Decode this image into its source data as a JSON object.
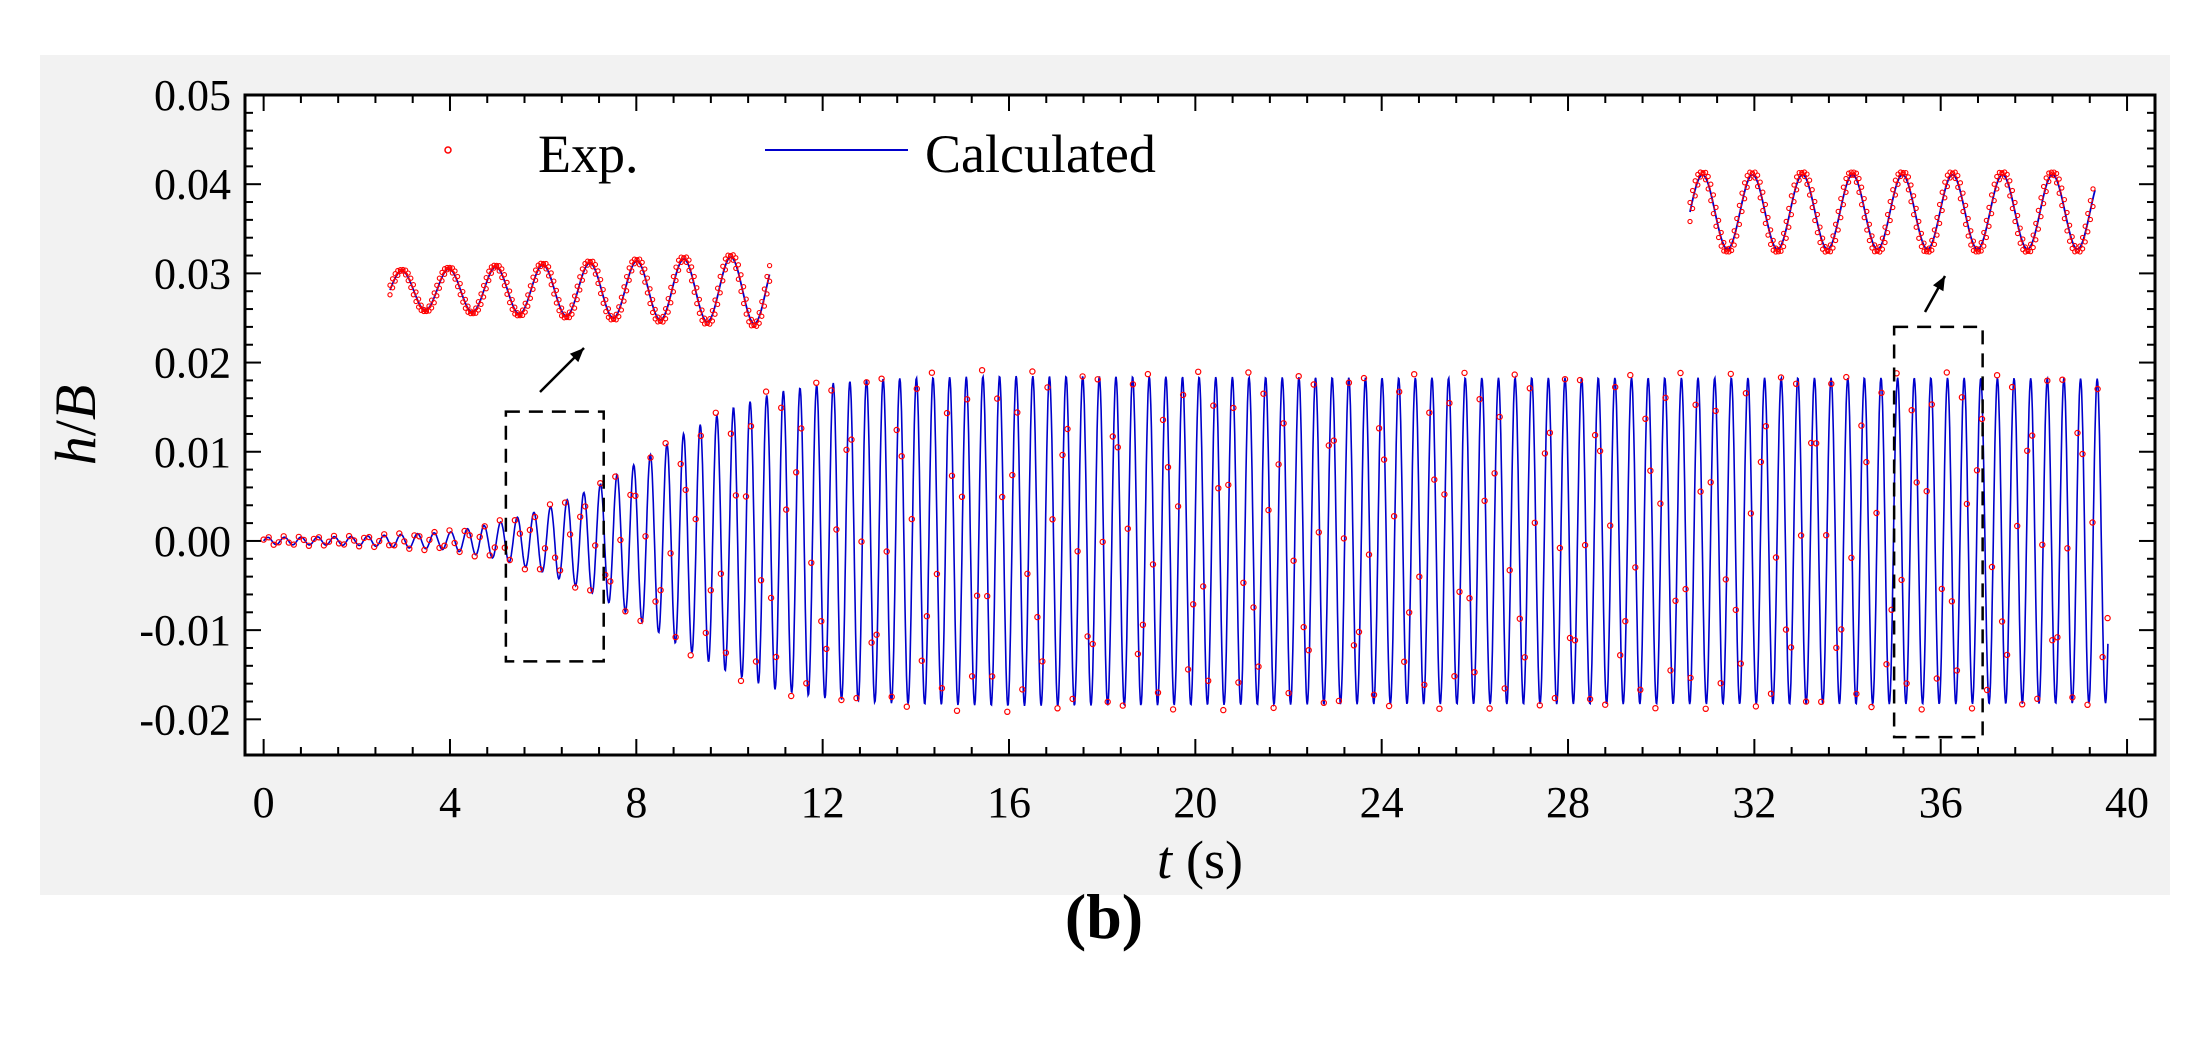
{
  "chart_data": {
    "type": "line",
    "title": "",
    "xlabel": "(s)",
    "xlabel_var": "t",
    "ylabel_num": "h",
    "ylabel_den": "B",
    "xlim": [
      -0.4,
      40.6
    ],
    "ylim": [
      -0.024,
      0.05
    ],
    "xticks": [
      0,
      4,
      8,
      12,
      16,
      20,
      24,
      28,
      32,
      36,
      40
    ],
    "xtick_labels": [
      "0",
      "4",
      "8",
      "12",
      "16",
      "20",
      "24",
      "28",
      "32",
      "36",
      "40"
    ],
    "yticks": [
      -0.02,
      -0.01,
      0.0,
      0.01,
      0.02,
      0.03,
      0.04,
      0.05
    ],
    "ytick_labels": [
      "-0.02",
      "-0.01",
      "0.00",
      "0.01",
      "0.02",
      "0.03",
      "0.04",
      "0.05"
    ],
    "legend": {
      "placement": "top-left",
      "entries": [
        {
          "label": "Exp.",
          "marker": "open-circle",
          "color": "#ff0000"
        },
        {
          "label": "Calculated",
          "marker": "line",
          "color": "#0000cc"
        }
      ]
    },
    "series": [
      {
        "name": "Exp.",
        "style": "markers",
        "color": "#ff0000",
        "oscillation_period_s": 0.357,
        "t_range": [
          0,
          39.6
        ],
        "envelope": {
          "t": [
            0,
            2,
            4,
            5,
            6,
            7,
            8,
            9,
            10,
            11,
            12,
            13,
            14,
            16,
            20,
            24,
            28,
            32,
            36,
            39.6
          ],
          "amplitude": [
            0.0005,
            0.0006,
            0.0012,
            0.0022,
            0.0038,
            0.006,
            0.009,
            0.0125,
            0.0152,
            0.0172,
            0.0182,
            0.0188,
            0.019,
            0.0192,
            0.019,
            0.0188,
            0.0189,
            0.0188,
            0.0189,
            0.0188
          ]
        }
      },
      {
        "name": "Calculated",
        "style": "line",
        "color": "#0000cc",
        "oscillation_period_s": 0.357,
        "t_range": [
          0,
          39.6
        ],
        "envelope": {
          "t": [
            0,
            2,
            4,
            5,
            6,
            7,
            8,
            9,
            10,
            11,
            12,
            13,
            14,
            16,
            20,
            24,
            28,
            32,
            36,
            39.6
          ],
          "amplitude": [
            0.0004,
            0.0005,
            0.001,
            0.002,
            0.0035,
            0.0057,
            0.0087,
            0.012,
            0.0148,
            0.0167,
            0.0176,
            0.0181,
            0.0183,
            0.0185,
            0.0184,
            0.0183,
            0.0183,
            0.0183,
            0.0183,
            0.0182
          ]
        }
      }
    ],
    "annotations": [
      {
        "type": "zoom-box",
        "t_range": [
          5.2,
          7.3
        ],
        "y_range": [
          -0.0135,
          0.0145
        ],
        "inset_position": "upper-left"
      },
      {
        "type": "zoom-box",
        "t_range": [
          35.0,
          36.9
        ],
        "y_range": [
          -0.022,
          0.024
        ],
        "inset_position": "upper-right"
      }
    ]
  },
  "figure": {
    "panel_label": "(b)"
  }
}
